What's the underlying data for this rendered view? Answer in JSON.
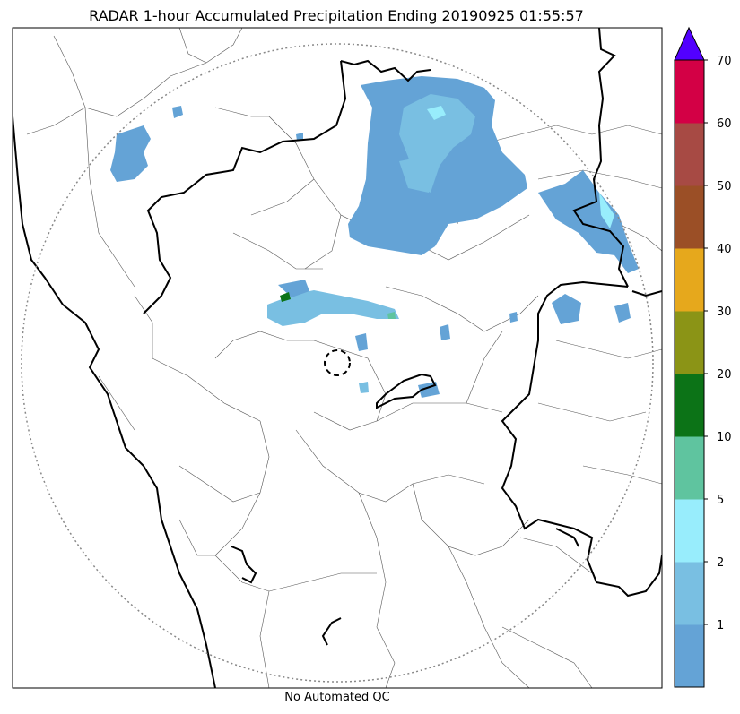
{
  "title": "RADAR 1-hour Accumulated Precipitation Ending 20190925 01:55:57",
  "footnote": "No Automated QC",
  "colorbar": {
    "colors": [
      "#64a3d6",
      "#79bfe2",
      "#98edfc",
      "#5fc49f",
      "#0c7317",
      "#8b9416",
      "#e6a81c",
      "#9b4f26",
      "#a74a44",
      "#d30045"
    ],
    "extend_color": "#5200ff",
    "tick_labels": [
      "1",
      "2",
      "5",
      "10",
      "20",
      "30",
      "40",
      "50",
      "60",
      "70"
    ]
  },
  "map_colors": {
    "coastline": "#000000",
    "state_border": "#000000",
    "district_border": "#555555",
    "range_ring": "#888888",
    "precip_light": "#64a3d6",
    "precip_medium": "#79bfe2",
    "precip_cyan": "#98edfc",
    "precip_green": "#0c7317"
  }
}
